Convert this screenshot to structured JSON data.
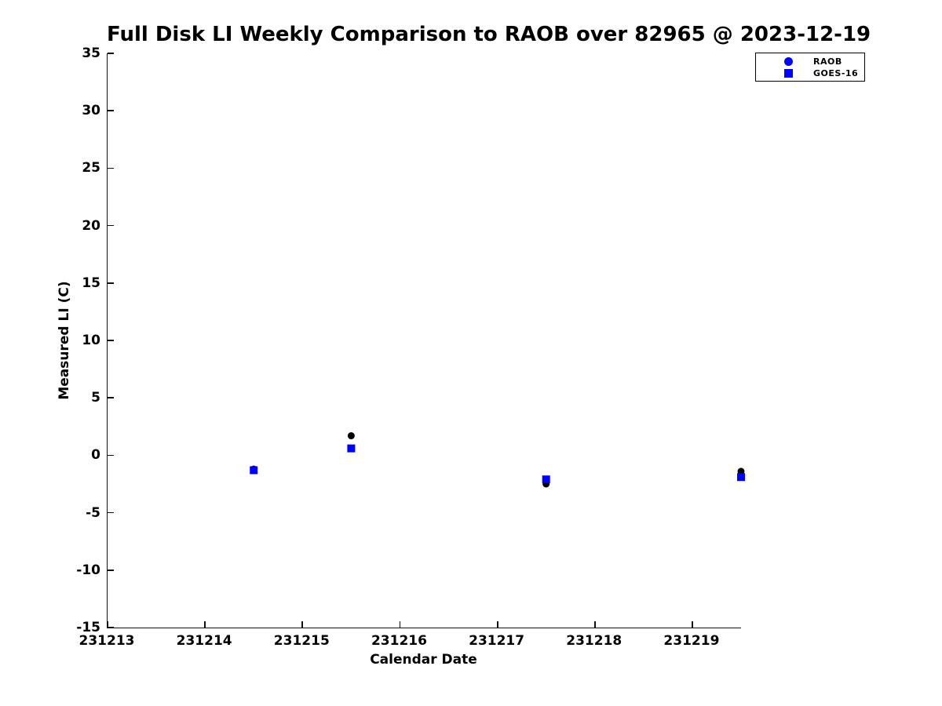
{
  "chart_data": {
    "type": "scatter",
    "title": "Full Disk LI Weekly Comparison to RAOB over 82965 @ 2023-12-19",
    "xlabel": "Calendar Date",
    "ylabel": "Measured LI (C)",
    "xlim": [
      231213,
      231219.5
    ],
    "ylim": [
      -15,
      35
    ],
    "xticks": [
      231213,
      231214,
      231215,
      231216,
      231217,
      231218,
      231219
    ],
    "yticks": [
      35,
      30,
      25,
      20,
      15,
      10,
      5,
      0,
      -5,
      -10,
      -15
    ],
    "grid": false,
    "legend_position": "top-right",
    "series": [
      {
        "name": "RAOB",
        "marker": "circle",
        "plot_color": "#000000",
        "legend_color": "#0000ff",
        "x": [
          231214.5,
          231215.5,
          231217.5,
          231219.5
        ],
        "y": [
          -1.2,
          1.7,
          -2.5,
          -1.4
        ]
      },
      {
        "name": "GOES-16",
        "marker": "square",
        "plot_color": "#0000ff",
        "legend_color": "#0000ff",
        "x": [
          231214.5,
          231215.5,
          231217.5,
          231219.5
        ],
        "y": [
          -1.3,
          0.6,
          -2.1,
          -1.9
        ]
      }
    ]
  },
  "colors": {
    "background": "#ffffff",
    "axis": "#111111",
    "text": "#000000",
    "marker_blue": "#0000ff",
    "marker_black": "#000000"
  }
}
